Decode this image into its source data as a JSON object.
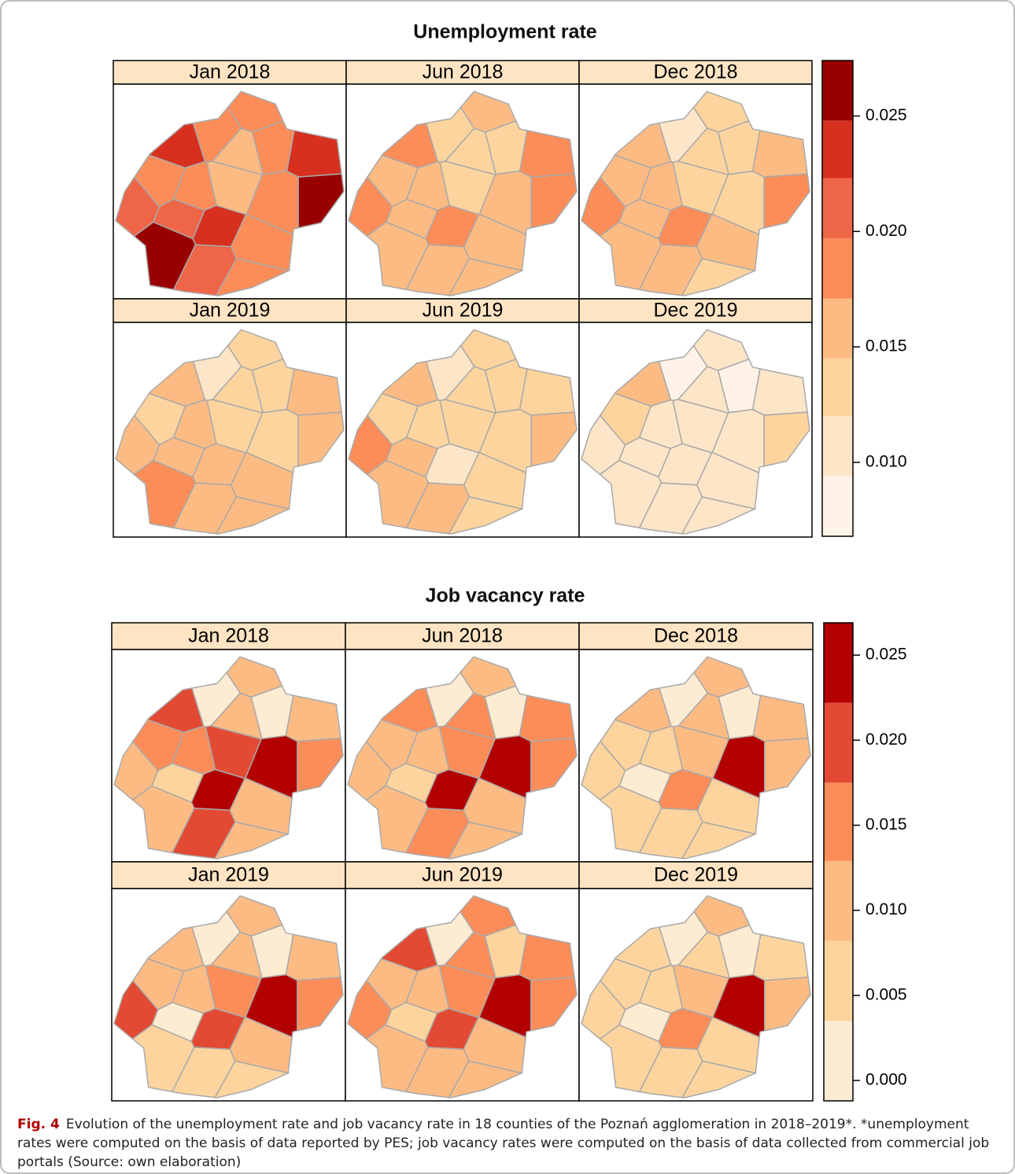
{
  "chart_data": [
    {
      "type": "choropleth",
      "title": "Unemployment rate",
      "colors": [
        "#fef3e6",
        "#fde5c8",
        "#fdd49e",
        "#fdbb84",
        "#fc8d59",
        "#ef6548",
        "#d7301f",
        "#990000"
      ],
      "breaks": [
        0.0068,
        0.0094,
        0.012,
        0.0145,
        0.0171,
        0.0197,
        0.0223,
        0.0248,
        0.0274
      ],
      "clim": [
        0.0068,
        0.0274
      ],
      "cticks": [
        {
          "value": 0.01,
          "label": "0.010"
        },
        0.015,
        {
          "value": 0.02,
          "label": "0.020"
        },
        0.025
      ],
      "panels": [
        {
          "label": "Jan 2018",
          "values": [
            0.018,
            0.019,
            0.016,
            0.019,
            0.023,
            0.023,
            0.018,
            0.015,
            0.027,
            0.018,
            0.02,
            0.024,
            0.027,
            0.021,
            0.019,
            0.018,
            0.019,
            0.021
          ]
        },
        {
          "label": "Jun 2018",
          "values": [
            0.015,
            0.014,
            0.014,
            0.014,
            0.018,
            0.018,
            0.015,
            0.014,
            0.018,
            0.015,
            0.019,
            0.019,
            0.016,
            0.016,
            0.015,
            0.016,
            0.015,
            0.015
          ]
        },
        {
          "label": "Dec 2018",
          "values": [
            0.013,
            0.011,
            0.012,
            0.012,
            0.015,
            0.015,
            0.015,
            0.014,
            0.018,
            0.015,
            0.018,
            0.019,
            0.015,
            0.015,
            0.015,
            0.012,
            0.014,
            0.015
          ]
        },
        {
          "label": "Jan 2019",
          "values": [
            0.014,
            0.01,
            0.013,
            0.013,
            0.015,
            0.015,
            0.014,
            0.013,
            0.015,
            0.015,
            0.016,
            0.015,
            0.018,
            0.015,
            0.015,
            0.014,
            0.015,
            0.015
          ]
        },
        {
          "label": "Jun 2019",
          "values": [
            0.013,
            0.011,
            0.012,
            0.012,
            0.015,
            0.014,
            0.014,
            0.013,
            0.015,
            0.014,
            0.018,
            0.011,
            0.015,
            0.015,
            0.014,
            0.014,
            0.014,
            0.015
          ]
        },
        {
          "label": "Dec 2019",
          "values": [
            0.011,
            0.008,
            0.01,
            0.009,
            0.015,
            0.011,
            0.012,
            0.011,
            0.013,
            0.011,
            0.011,
            0.011,
            0.011,
            0.011,
            0.011,
            0.011,
            0.011,
            0.01
          ]
        }
      ]
    },
    {
      "type": "choropleth",
      "title": "Job vacancy rate",
      "colors": [
        "#fdebd2",
        "#fdd49e",
        "#fdbb84",
        "#fc8d59",
        "#e34a33",
        "#b30000"
      ],
      "breaks": [
        -0.0012,
        0.0035,
        0.0082,
        0.0129,
        0.0175,
        0.0222,
        0.0269
      ],
      "clim": [
        -0.0012,
        0.0269
      ],
      "cticks": [
        {
          "value": 0,
          "label": "0.000"
        },
        0.005,
        {
          "value": 0.01,
          "label": "0.010"
        },
        0.015,
        {
          "value": 0.02,
          "label": "0.020"
        },
        0.025
      ],
      "panels": [
        {
          "label": "Jan 2018",
          "values": [
            0.011,
            0.002,
            0.011,
            0.002,
            0.021,
            0.011,
            0.016,
            0.021,
            0.016,
            0.016,
            0.011,
            0.025,
            0.011,
            0.021,
            0.011,
            0.025,
            0.011,
            0.006
          ]
        },
        {
          "label": "Jun 2018",
          "values": [
            0.011,
            0.002,
            0.016,
            0.002,
            0.016,
            0.016,
            0.011,
            0.016,
            0.016,
            0.011,
            0.011,
            0.025,
            0.011,
            0.016,
            0.011,
            0.025,
            0.011,
            0.006
          ]
        },
        {
          "label": "Dec 2018",
          "values": [
            0.011,
            0.002,
            0.011,
            0.002,
            0.011,
            0.011,
            0.006,
            0.011,
            0.011,
            0.006,
            0.006,
            0.016,
            0.006,
            0.006,
            0.006,
            0.025,
            0.006,
            0.002
          ]
        },
        {
          "label": "Jan 2019",
          "values": [
            0.011,
            0.002,
            0.011,
            0.002,
            0.011,
            0.011,
            0.011,
            0.016,
            0.016,
            0.011,
            0.021,
            0.021,
            0.006,
            0.006,
            0.011,
            0.025,
            0.006,
            0.002
          ]
        },
        {
          "label": "Jun 2019",
          "values": [
            0.016,
            0.002,
            0.016,
            0.006,
            0.021,
            0.016,
            0.011,
            0.016,
            0.016,
            0.011,
            0.016,
            0.021,
            0.011,
            0.011,
            0.011,
            0.025,
            0.011,
            0.006
          ]
        },
        {
          "label": "Dec 2019",
          "values": [
            0.011,
            0.002,
            0.006,
            0.002,
            0.006,
            0.006,
            0.006,
            0.011,
            0.011,
            0.006,
            0.006,
            0.016,
            0.006,
            0.006,
            0.006,
            0.025,
            0.006,
            0.002
          ]
        }
      ]
    }
  ],
  "caption": {
    "label": "Fig. 4",
    "text": "Evolution of the unemployment rate and job vacancy rate in 18 counties of the Poznań agglomeration in 2018–2019*. *unemployment rates were computed on the basis of data reported by PES; job vacancy rates were computed on the basis of data collected from commercial job portals (Source: own elaboration)"
  }
}
